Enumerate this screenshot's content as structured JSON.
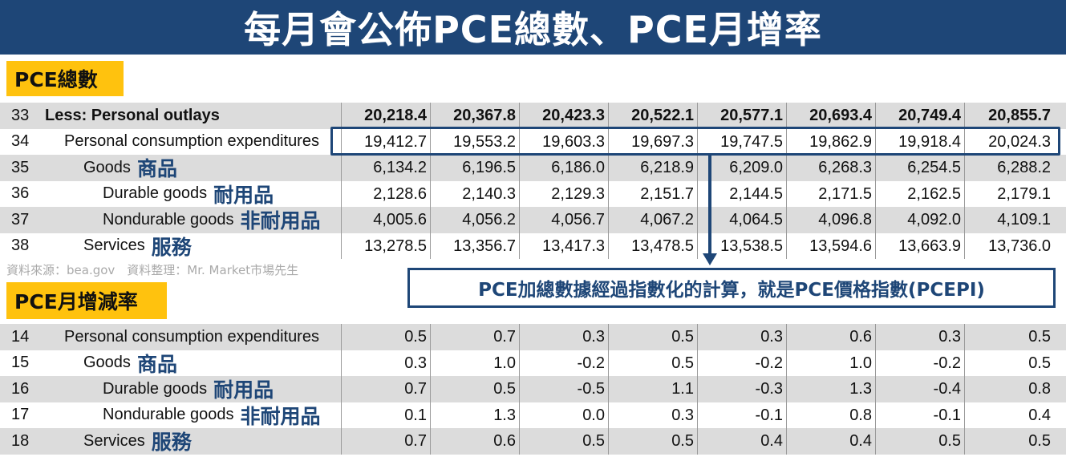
{
  "title": "每月會公佈PCE總數、PCE月增率",
  "section1_label": "PCE總數",
  "section2_label": "PCE月增減率",
  "source_note": "資料來源：bea.gov　資料整理：Mr. Market市場先生",
  "callout_text": "PCE加總數據經過指數化的計算，就是PCE價格指數(PCEPI)",
  "colors": {
    "banner": "#1e4677",
    "label_bg": "#ffc20e",
    "accent": "#1e4677",
    "row_shade": "#dcdcdc"
  },
  "table1": {
    "rows": [
      {
        "num": "33",
        "label": "Less: Personal outlays",
        "zh": "",
        "indent": 0,
        "bold": true,
        "shaded": true,
        "values": [
          "20,218.4",
          "20,367.8",
          "20,423.3",
          "20,522.1",
          "20,577.1",
          "20,693.4",
          "20,749.4",
          "20,855.7"
        ]
      },
      {
        "num": "34",
        "label": "Personal consumption expenditures",
        "zh": "",
        "indent": 1,
        "bold": false,
        "shaded": false,
        "values": [
          "19,412.7",
          "19,553.2",
          "19,603.3",
          "19,697.3",
          "19,747.5",
          "19,862.9",
          "19,918.4",
          "20,024.3"
        ]
      },
      {
        "num": "35",
        "label": "Goods",
        "zh": "商品",
        "indent": 2,
        "bold": false,
        "shaded": true,
        "values": [
          "6,134.2",
          "6,196.5",
          "6,186.0",
          "6,218.9",
          "6,209.0",
          "6,268.3",
          "6,254.5",
          "6,288.2"
        ]
      },
      {
        "num": "36",
        "label": "Durable goods",
        "zh": "耐用品",
        "indent": 3,
        "bold": false,
        "shaded": false,
        "values": [
          "2,128.6",
          "2,140.3",
          "2,129.3",
          "2,151.7",
          "2,144.5",
          "2,171.5",
          "2,162.5",
          "2,179.1"
        ]
      },
      {
        "num": "37",
        "label": "Nondurable goods",
        "zh": "非耐用品",
        "indent": 3,
        "bold": false,
        "shaded": true,
        "values": [
          "4,005.6",
          "4,056.2",
          "4,056.7",
          "4,067.2",
          "4,064.5",
          "4,096.8",
          "4,092.0",
          "4,109.1"
        ]
      },
      {
        "num": "38",
        "label": "Services",
        "zh": "服務",
        "indent": 2,
        "bold": false,
        "shaded": false,
        "values": [
          "13,278.5",
          "13,356.7",
          "13,417.3",
          "13,478.5",
          "13,538.5",
          "13,594.6",
          "13,663.9",
          "13,736.0"
        ]
      }
    ]
  },
  "table2": {
    "rows": [
      {
        "num": "14",
        "label": "Personal consumption expenditures",
        "zh": "",
        "indent": 1,
        "bold": false,
        "shaded": true,
        "values": [
          "0.5",
          "0.7",
          "0.3",
          "0.5",
          "0.3",
          "0.6",
          "0.3",
          "0.5"
        ]
      },
      {
        "num": "15",
        "label": "Goods",
        "zh": "商品",
        "indent": 2,
        "bold": false,
        "shaded": false,
        "values": [
          "0.3",
          "1.0",
          "-0.2",
          "0.5",
          "-0.2",
          "1.0",
          "-0.2",
          "0.5"
        ]
      },
      {
        "num": "16",
        "label": "Durable goods",
        "zh": "耐用品",
        "indent": 3,
        "bold": false,
        "shaded": true,
        "values": [
          "0.7",
          "0.5",
          "-0.5",
          "1.1",
          "-0.3",
          "1.3",
          "-0.4",
          "0.8"
        ]
      },
      {
        "num": "17",
        "label": "Nondurable goods",
        "zh": "非耐用品",
        "indent": 3,
        "bold": false,
        "shaded": false,
        "values": [
          "0.1",
          "1.3",
          "0.0",
          "0.3",
          "-0.1",
          "0.8",
          "-0.1",
          "0.4"
        ]
      },
      {
        "num": "18",
        "label": "Services",
        "zh": "服務",
        "indent": 2,
        "bold": false,
        "shaded": true,
        "values": [
          "0.7",
          "0.6",
          "0.5",
          "0.5",
          "0.4",
          "0.4",
          "0.5",
          "0.5"
        ]
      }
    ]
  }
}
